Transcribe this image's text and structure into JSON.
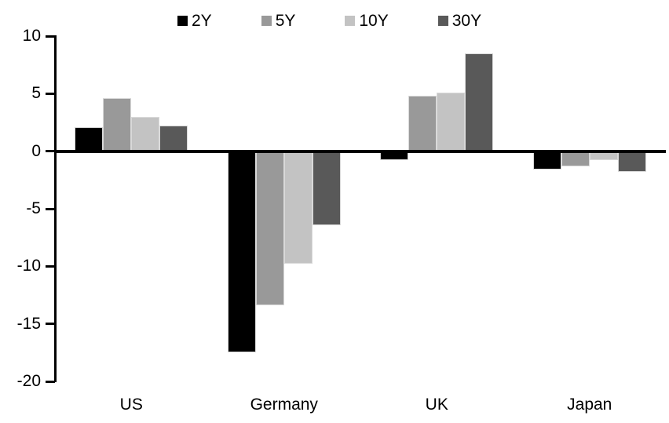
{
  "chart_data": {
    "type": "bar",
    "title": "",
    "xlabel": "",
    "ylabel": "",
    "categories": [
      "US",
      "Germany",
      "UK",
      "Japan"
    ],
    "series": [
      {
        "name": "2Y",
        "color": "#000000",
        "values": [
          2.1,
          -17.5,
          -0.8,
          -1.6
        ]
      },
      {
        "name": "5Y",
        "color": "#999999",
        "values": [
          4.6,
          -13.4,
          4.8,
          -1.3
        ]
      },
      {
        "name": "10Y",
        "color": "#c3c3c3",
        "values": [
          3.0,
          -9.8,
          5.1,
          -0.8
        ]
      },
      {
        "name": "30Y",
        "color": "#595959",
        "values": [
          2.2,
          -6.4,
          8.5,
          -1.8
        ]
      }
    ],
    "ylim": [
      -20,
      10
    ],
    "yticks": [
      10,
      5,
      0,
      -5,
      -10,
      -15,
      -20
    ],
    "grid": false,
    "legend_position": "top"
  },
  "colors": {
    "background": "#ffffff",
    "axis": "#000000",
    "text": "#000000",
    "bar_outline": "#d9d9d9"
  }
}
